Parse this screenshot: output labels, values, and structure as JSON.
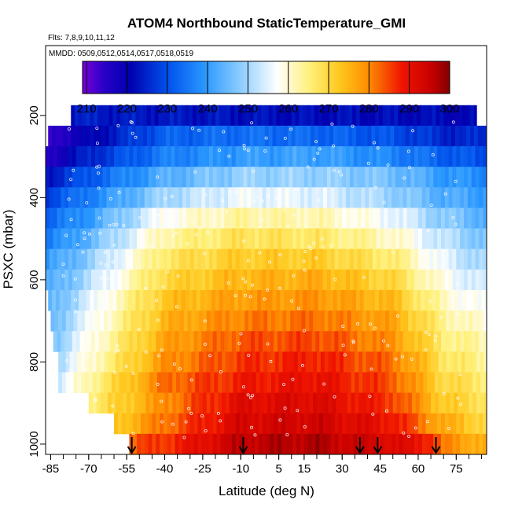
{
  "chart_data": {
    "type": "heatmap",
    "title": "ATOM4 Northbound StaticTemperature_GMI",
    "flights_note": "Flts: 7,8,9,10,11,12",
    "dates_note": "MMDD: 0509,0512,0514,0517,0518,0519",
    "xlabel": "Latitude (deg N)",
    "ylabel": "PSXC (mbar)",
    "xlim": [
      -87,
      87
    ],
    "ylim": [
      1025,
      30
    ],
    "x_ticks": [
      "-85",
      "-70",
      "-55",
      "-40",
      "-25",
      "-10",
      "5",
      "15",
      "30",
      "45",
      "60",
      "75"
    ],
    "x_tick_values": [
      -85,
      -70,
      -55,
      -40,
      -25,
      -10,
      5,
      15,
      30,
      45,
      60,
      75
    ],
    "y_ticks": [
      "200",
      "400",
      "600",
      "800",
      "1000"
    ],
    "y_tick_values": [
      200,
      400,
      600,
      800,
      1000
    ],
    "colorbar": {
      "min": 209,
      "max": 300,
      "ticks": [
        210,
        220,
        230,
        240,
        250,
        260,
        270,
        280,
        290,
        300
      ],
      "tick_labels": [
        "210",
        "220",
        "230",
        "240",
        "250",
        "260",
        "270",
        "280",
        "290",
        "300"
      ]
    },
    "pressure_levels": [
      {
        "p": 200,
        "lat_range": [
          -77,
          83
        ],
        "T": [
          [
            -77,
            224
          ],
          [
            -20,
            223
          ],
          [
            20,
            222
          ],
          [
            60,
            222
          ],
          [
            83,
            221
          ]
        ]
      },
      {
        "p": 250,
        "lat_range": [
          -86,
          88
        ],
        "T": [
          [
            -86,
            214
          ],
          [
            -70,
            220
          ],
          [
            -40,
            232
          ],
          [
            -10,
            234
          ],
          [
            20,
            233
          ],
          [
            50,
            230
          ],
          [
            70,
            225
          ],
          [
            88,
            225
          ]
        ]
      },
      {
        "p": 300,
        "lat_range": [
          -87,
          88
        ],
        "T": [
          [
            -87,
            215
          ],
          [
            -70,
            225
          ],
          [
            -40,
            236
          ],
          [
            -10,
            240
          ],
          [
            20,
            241
          ],
          [
            50,
            237
          ],
          [
            70,
            232
          ],
          [
            88,
            229
          ]
        ]
      },
      {
        "p": 350,
        "lat_range": [
          -87,
          88
        ],
        "T": [
          [
            -87,
            223
          ],
          [
            -70,
            231
          ],
          [
            -40,
            243
          ],
          [
            -10,
            249
          ],
          [
            20,
            249
          ],
          [
            50,
            246
          ],
          [
            70,
            240
          ],
          [
            88,
            237
          ]
        ]
      },
      {
        "p": 400,
        "lat_range": [
          -87,
          88
        ],
        "T": [
          [
            -87,
            228
          ],
          [
            -70,
            236
          ],
          [
            -40,
            250
          ],
          [
            -10,
            256
          ],
          [
            20,
            255
          ],
          [
            50,
            249
          ],
          [
            70,
            243
          ],
          [
            88,
            240
          ]
        ]
      },
      {
        "p": 450,
        "lat_range": [
          -87,
          88
        ],
        "T": [
          [
            -87,
            232
          ],
          [
            -70,
            240
          ],
          [
            -40,
            258
          ],
          [
            -10,
            263
          ],
          [
            20,
            262
          ],
          [
            50,
            256
          ],
          [
            70,
            248
          ],
          [
            88,
            243
          ]
        ]
      },
      {
        "p": 500,
        "lat_range": [
          -87,
          88
        ],
        "T": [
          [
            -87,
            235
          ],
          [
            -70,
            244
          ],
          [
            -40,
            263
          ],
          [
            -10,
            268
          ],
          [
            20,
            267
          ],
          [
            50,
            261
          ],
          [
            70,
            252
          ],
          [
            88,
            246
          ]
        ]
      },
      {
        "p": 550,
        "lat_range": [
          -87,
          88
        ],
        "T": [
          [
            -87,
            239
          ],
          [
            -70,
            248
          ],
          [
            -40,
            267
          ],
          [
            -10,
            272
          ],
          [
            20,
            272
          ],
          [
            50,
            266
          ],
          [
            70,
            255
          ],
          [
            88,
            249
          ]
        ]
      },
      {
        "p": 600,
        "lat_range": [
          -87,
          88
        ],
        "T": [
          [
            -87,
            241
          ],
          [
            -70,
            251
          ],
          [
            -40,
            270
          ],
          [
            -10,
            275
          ],
          [
            20,
            276
          ],
          [
            50,
            270
          ],
          [
            70,
            258
          ],
          [
            88,
            252
          ]
        ]
      },
      {
        "p": 650,
        "lat_range": [
          -86,
          88
        ],
        "T": [
          [
            -86,
            243
          ],
          [
            -70,
            254
          ],
          [
            -40,
            273
          ],
          [
            -10,
            278
          ],
          [
            20,
            279
          ],
          [
            50,
            274
          ],
          [
            70,
            261
          ],
          [
            88,
            255
          ]
        ]
      },
      {
        "p": 700,
        "lat_range": [
          -85,
          88
        ],
        "T": [
          [
            -85,
            245
          ],
          [
            -70,
            256
          ],
          [
            -40,
            275
          ],
          [
            -10,
            281
          ],
          [
            20,
            282
          ],
          [
            50,
            277
          ],
          [
            70,
            264
          ],
          [
            88,
            258
          ]
        ]
      },
      {
        "p": 750,
        "lat_range": [
          -84,
          88
        ],
        "T": [
          [
            -84,
            247
          ],
          [
            -70,
            258
          ],
          [
            -40,
            277
          ],
          [
            -10,
            284
          ],
          [
            20,
            285
          ],
          [
            50,
            279
          ],
          [
            70,
            266
          ],
          [
            88,
            261
          ]
        ]
      },
      {
        "p": 800,
        "lat_range": [
          -82,
          88
        ],
        "T": [
          [
            -82,
            250
          ],
          [
            -70,
            260
          ],
          [
            -40,
            279
          ],
          [
            -10,
            286
          ],
          [
            20,
            288
          ],
          [
            50,
            282
          ],
          [
            70,
            268
          ],
          [
            88,
            263
          ]
        ]
      },
      {
        "p": 850,
        "lat_range": [
          -82,
          88
        ],
        "T": [
          [
            -82,
            253
          ],
          [
            -70,
            263
          ],
          [
            -40,
            282
          ],
          [
            -10,
            288
          ],
          [
            20,
            290
          ],
          [
            50,
            284
          ],
          [
            70,
            270
          ],
          [
            88,
            266
          ]
        ]
      },
      {
        "p": 900,
        "lat_range": [
          -70,
          88
        ],
        "T": [
          [
            -70,
            265
          ],
          [
            -50,
            275
          ],
          [
            -30,
            284
          ],
          [
            -10,
            291
          ],
          [
            20,
            292
          ],
          [
            50,
            286
          ],
          [
            70,
            272
          ],
          [
            88,
            268
          ]
        ]
      },
      {
        "p": 950,
        "lat_range": [
          -60,
          88
        ],
        "T": [
          [
            -60,
            272
          ],
          [
            -40,
            282
          ],
          [
            -10,
            293
          ],
          [
            20,
            294
          ],
          [
            50,
            289
          ],
          [
            70,
            276
          ],
          [
            88,
            270
          ]
        ]
      },
      {
        "p": 1000,
        "lat_range": [
          -54,
          88
        ],
        "T": [
          [
            -54,
            283
          ],
          [
            -30,
            289
          ],
          [
            -10,
            296
          ],
          [
            20,
            297
          ],
          [
            50,
            292
          ],
          [
            65,
            288
          ],
          [
            70,
            280
          ],
          [
            88,
            275
          ]
        ]
      }
    ],
    "flight_markers_lat": [
      -53,
      -9,
      37,
      44,
      67
    ]
  }
}
